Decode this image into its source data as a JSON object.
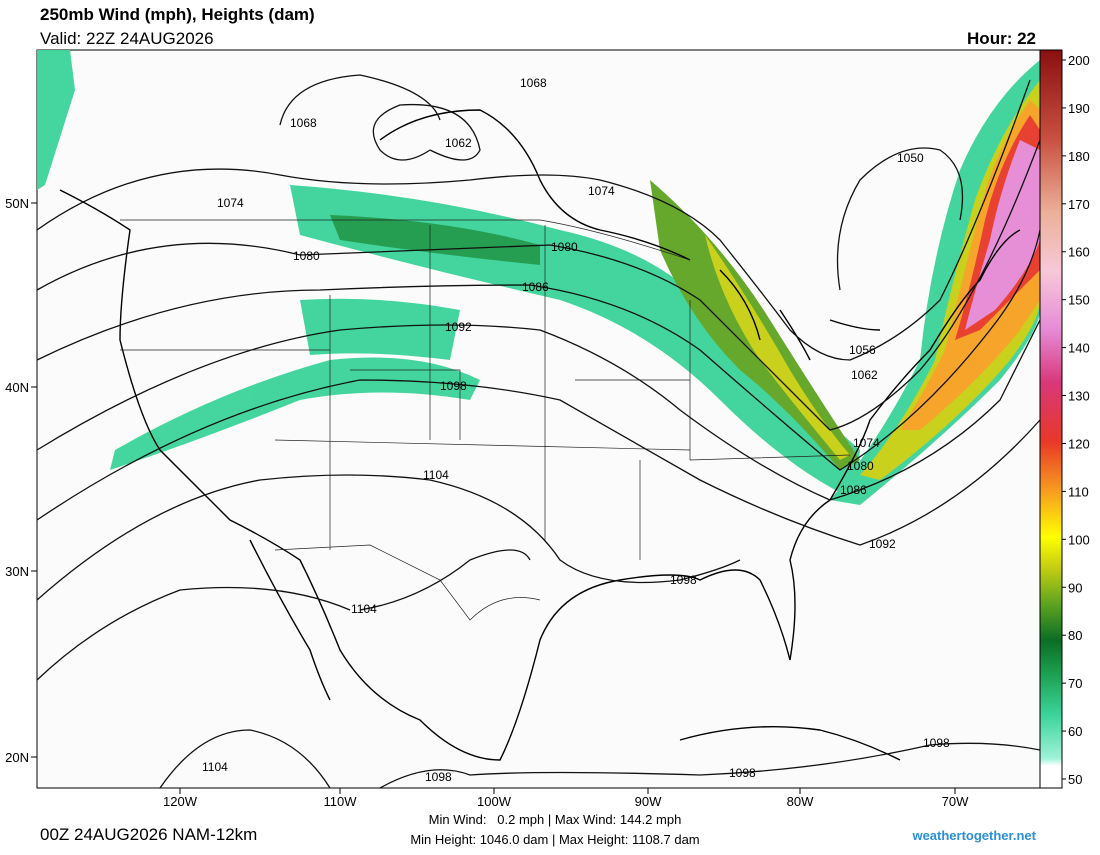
{
  "header": {
    "title": "250mb Wind (mph), Heights (dam)",
    "valid": "Valid: 22Z 24AUG2026",
    "hour": "Hour: 22"
  },
  "latitude_labels": [
    "50N",
    "40N",
    "30N",
    "20N"
  ],
  "longitude_labels": [
    "120W",
    "110W",
    "100W",
    "90W",
    "80W",
    "70W"
  ],
  "colorbar": {
    "labels": [
      50,
      60,
      70,
      80,
      90,
      100,
      110,
      120,
      130,
      140,
      150,
      160,
      170,
      180,
      190,
      200
    ]
  },
  "contour_labels": [
    1068,
    1068,
    1062,
    1074,
    1074,
    1080,
    1080,
    1086,
    1092,
    1098,
    1104,
    1104,
    1104,
    1098,
    1098,
    1098,
    1098,
    1092,
    1086,
    1080,
    1074,
    1062,
    1056,
    1050
  ],
  "footer": {
    "run": "00Z 24AUG2026 NAM-12km",
    "wind": "Min Wind:   0.2 mph | Max Wind: 144.2 mph",
    "height": "Min Height: 1046.0 dam | Max Height: 1108.7 dam",
    "site": "weathertogether.net"
  }
}
